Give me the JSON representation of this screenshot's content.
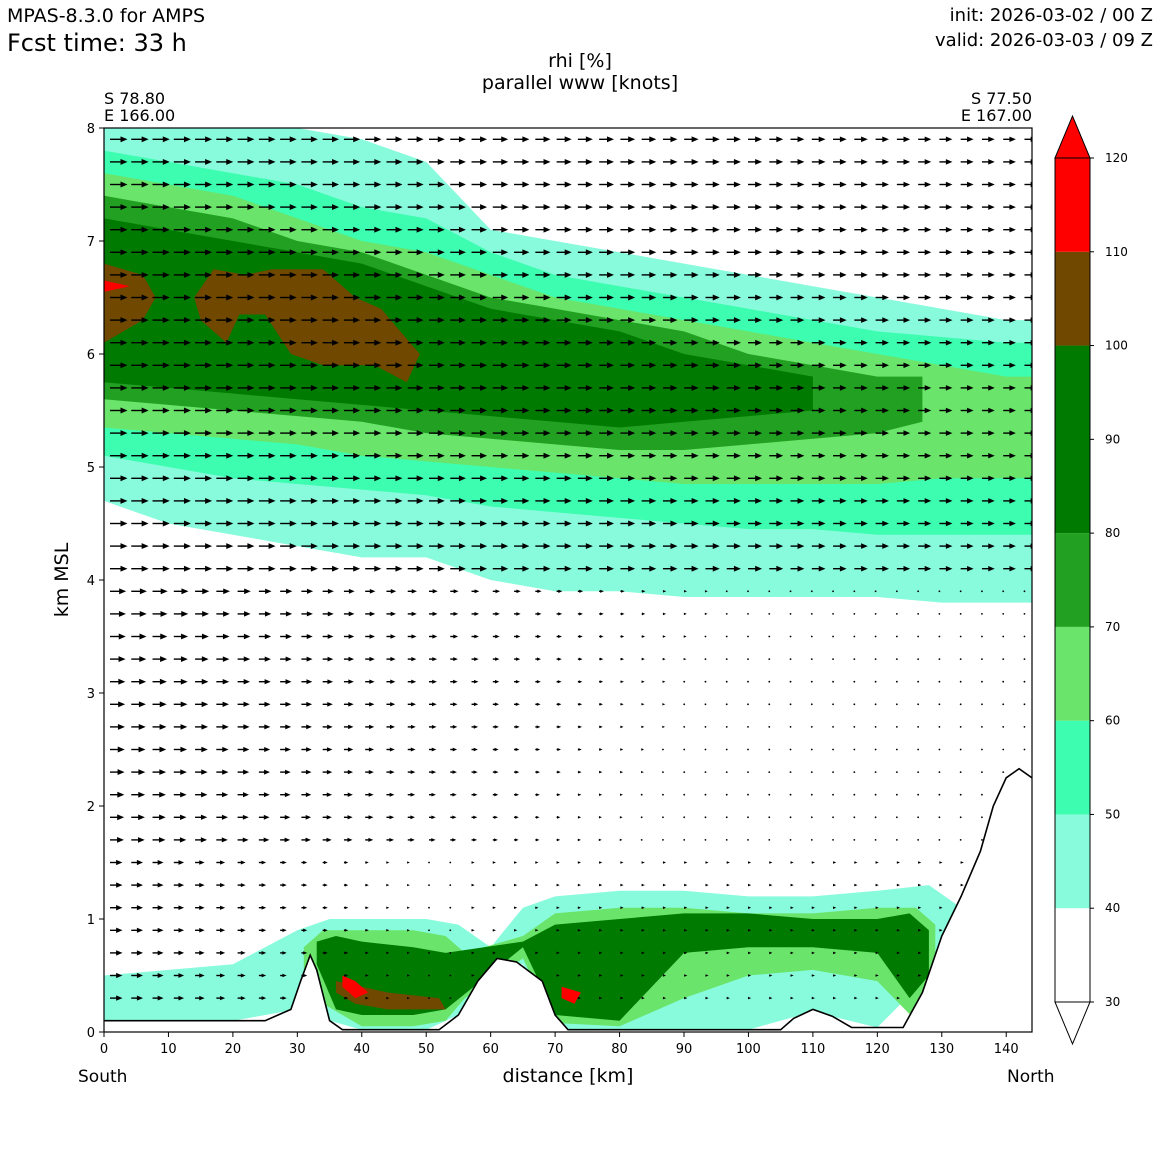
{
  "header": {
    "model": "MPAS-8.3.0 for AMPS",
    "fcst_time": "Fcst time:   33 h",
    "init": "init: 2026-03-02 / 00 Z",
    "valid": "valid: 2026-03-03 / 09 Z"
  },
  "chart_data": {
    "type": "heatmap",
    "title": "rhi [%]",
    "subtitle": "parallel www [knots]",
    "xlabel": "distance [km]",
    "ylabel": "km MSL",
    "xlim": [
      0,
      144
    ],
    "ylim": [
      0,
      8
    ],
    "x_ticks": [
      "0",
      "10",
      "20",
      "30",
      "40",
      "50",
      "60",
      "70",
      "80",
      "90",
      "100",
      "110",
      "120",
      "130",
      "140"
    ],
    "y_ticks": [
      "0",
      "1",
      "2",
      "3",
      "4",
      "5",
      "6",
      "7",
      "8"
    ],
    "start_point": {
      "lat": "S 78.80",
      "lon": "E 166.00"
    },
    "end_point": {
      "lat": "S 77.50",
      "lon": "E 167.00"
    },
    "left_end_label": "South",
    "right_end_label": "North",
    "colorbar": {
      "levels": [
        "30",
        "40",
        "50",
        "60",
        "70",
        "80",
        "90",
        "100",
        "110",
        "120"
      ],
      "bins": [
        {
          "from": 30,
          "to": 40,
          "color": "#ffffff"
        },
        {
          "from": 40,
          "to": 50,
          "color": "#88fbdc"
        },
        {
          "from": 50,
          "to": 60,
          "color": "#3dfdb0"
        },
        {
          "from": 60,
          "to": 70,
          "color": "#6ae46a"
        },
        {
          "from": 70,
          "to": 80,
          "color": "#21a021"
        },
        {
          "from": 80,
          "to": 100,
          "color": "#007a00"
        },
        {
          "from": 100,
          "to": 110,
          "color": "#704800"
        },
        {
          "from": 110,
          "to": 120,
          "color": "#ff0000"
        }
      ]
    },
    "terrain": [
      [
        0,
        0.1
      ],
      [
        25,
        0.1
      ],
      [
        29,
        0.2
      ],
      [
        30.5,
        0.45
      ],
      [
        32,
        0.68
      ],
      [
        33,
        0.55
      ],
      [
        35,
        0.1
      ],
      [
        37,
        0.02
      ],
      [
        52,
        0.02
      ],
      [
        55,
        0.15
      ],
      [
        58,
        0.45
      ],
      [
        61,
        0.65
      ],
      [
        64,
        0.62
      ],
      [
        68,
        0.45
      ],
      [
        70,
        0.15
      ],
      [
        72,
        0.02
      ],
      [
        105,
        0.02
      ],
      [
        107,
        0.12
      ],
      [
        110,
        0.2
      ],
      [
        113,
        0.14
      ],
      [
        116,
        0.04
      ],
      [
        124,
        0.04
      ],
      [
        127,
        0.35
      ],
      [
        130,
        0.85
      ],
      [
        133,
        1.2
      ],
      [
        136,
        1.6
      ],
      [
        138,
        2.0
      ],
      [
        140,
        2.25
      ],
      [
        142,
        2.33
      ],
      [
        144,
        2.25
      ]
    ],
    "rh_layers": [
      {
        "rh_bin": "40-50",
        "x": [
          0,
          10,
          20,
          30,
          40,
          50,
          60,
          70,
          80,
          90,
          100,
          110,
          120,
          130,
          140,
          144
        ],
        "top": [
          8,
          8,
          8,
          8,
          7.9,
          7.7,
          7.1,
          7.0,
          6.9,
          6.8,
          6.7,
          6.6,
          6.5,
          6.4,
          6.3,
          6.3
        ],
        "bottom": [
          4.7,
          4.5,
          4.4,
          4.3,
          4.2,
          4.2,
          4.0,
          3.9,
          3.9,
          3.85,
          3.85,
          3.85,
          3.85,
          3.8,
          3.8,
          3.8
        ]
      },
      {
        "rh_bin": "50-60",
        "x": [
          0,
          10,
          20,
          30,
          40,
          50,
          60,
          70,
          80,
          90,
          100,
          110,
          120,
          130,
          140,
          144
        ],
        "top": [
          7.8,
          7.7,
          7.6,
          7.5,
          7.3,
          7.2,
          6.9,
          6.7,
          6.6,
          6.5,
          6.4,
          6.3,
          6.2,
          6.15,
          6.1,
          6.1
        ],
        "bottom": [
          5.1,
          5.0,
          4.9,
          4.85,
          4.8,
          4.75,
          4.65,
          4.6,
          4.55,
          4.5,
          4.45,
          4.45,
          4.4,
          4.4,
          4.4,
          4.4
        ]
      },
      {
        "rh_bin": "60-70",
        "x": [
          0,
          10,
          20,
          30,
          40,
          50,
          60,
          70,
          80,
          90,
          100,
          110,
          120,
          130,
          140,
          144
        ],
        "top": [
          7.6,
          7.5,
          7.4,
          7.2,
          7.0,
          6.9,
          6.7,
          6.5,
          6.4,
          6.3,
          6.2,
          6.1,
          6.0,
          5.9,
          5.8,
          5.8
        ],
        "bottom": [
          5.35,
          5.3,
          5.25,
          5.2,
          5.1,
          5.05,
          5.0,
          4.95,
          4.9,
          4.85,
          4.85,
          4.85,
          4.85,
          4.9,
          4.9,
          4.9
        ]
      },
      {
        "rh_bin": "70-80",
        "x": [
          0,
          10,
          20,
          30,
          40,
          50,
          60,
          70,
          80,
          90,
          100,
          110,
          120,
          127
        ],
        "top": [
          7.4,
          7.3,
          7.2,
          7.0,
          6.9,
          6.7,
          6.5,
          6.4,
          6.3,
          6.2,
          6.0,
          5.9,
          5.8,
          5.8
        ],
        "bottom": [
          5.6,
          5.55,
          5.5,
          5.45,
          5.4,
          5.3,
          5.25,
          5.2,
          5.15,
          5.15,
          5.2,
          5.25,
          5.3,
          5.4
        ]
      },
      {
        "rh_bin": "80-100",
        "x": [
          0,
          10,
          20,
          30,
          40,
          50,
          60,
          70,
          80,
          90,
          100,
          110
        ],
        "top": [
          7.2,
          7.1,
          7.0,
          6.9,
          6.8,
          6.6,
          6.4,
          6.3,
          6.2,
          6.0,
          5.9,
          5.8
        ],
        "bottom": [
          5.75,
          5.7,
          5.65,
          5.6,
          5.55,
          5.5,
          5.45,
          5.4,
          5.35,
          5.4,
          5.45,
          5.5
        ]
      }
    ],
    "rh_blobs": [
      {
        "rh_bin": "100-110",
        "outline": [
          [
            0,
            6.8
          ],
          [
            6,
            6.7
          ],
          [
            8,
            6.5
          ],
          [
            6,
            6.3
          ],
          [
            0,
            6.1
          ]
        ]
      },
      {
        "rh_bin": "100-110",
        "outline": [
          [
            14,
            6.5
          ],
          [
            17,
            6.75
          ],
          [
            22,
            6.7
          ],
          [
            26,
            6.75
          ],
          [
            34,
            6.75
          ],
          [
            39,
            6.5
          ],
          [
            43,
            6.4
          ],
          [
            46,
            6.2
          ],
          [
            49,
            6.0
          ],
          [
            47,
            5.75
          ],
          [
            42,
            5.9
          ],
          [
            34,
            5.9
          ],
          [
            29,
            6.0
          ],
          [
            25,
            6.35
          ],
          [
            21,
            6.35
          ],
          [
            19,
            6.1
          ],
          [
            15,
            6.3
          ]
        ]
      },
      {
        "rh_bin": "110-120",
        "outline": [
          [
            0,
            6.65
          ],
          [
            4,
            6.6
          ],
          [
            0,
            6.55
          ]
        ]
      }
    ],
    "low_cloud": [
      {
        "rh_bin": "40-50",
        "x": [
          0,
          10,
          20,
          30,
          35,
          40,
          50,
          55,
          60,
          65,
          70,
          80,
          90,
          100,
          110,
          120,
          128,
          133
        ],
        "top": [
          0.5,
          0.55,
          0.6,
          0.9,
          1.0,
          1.0,
          1.0,
          0.95,
          0.75,
          1.1,
          1.2,
          1.25,
          1.25,
          1.2,
          1.2,
          1.25,
          1.3,
          1.1
        ],
        "bottom": [
          0.1,
          0.1,
          0.1,
          0.2,
          0.1,
          0.02,
          0.02,
          0.15,
          0.6,
          0.6,
          0.02,
          0.02,
          0.02,
          0.02,
          0.18,
          0.04,
          0.5,
          1.0
        ]
      },
      {
        "rh_bin": "60-70",
        "x": [
          31,
          34,
          40,
          48,
          53,
          56,
          65,
          70,
          80,
          90,
          100,
          110,
          120,
          126,
          129
        ],
        "top": [
          0.75,
          0.9,
          0.9,
          0.9,
          0.85,
          0.7,
          0.85,
          1.05,
          1.1,
          1.1,
          1.05,
          1.05,
          1.1,
          1.1,
          0.95
        ],
        "bottom": [
          0.55,
          0.25,
          0.05,
          0.05,
          0.1,
          0.3,
          0.65,
          0.08,
          0.05,
          0.3,
          0.5,
          0.55,
          0.45,
          0.1,
          0.4
        ]
      },
      {
        "rh_bin": "80-100",
        "x": [
          33,
          36,
          40,
          48,
          53,
          65,
          70,
          80,
          90,
          100,
          110,
          120,
          125,
          128
        ],
        "top": [
          0.8,
          0.85,
          0.8,
          0.75,
          0.7,
          0.8,
          0.95,
          1.0,
          1.05,
          1.05,
          1.0,
          1.0,
          1.05,
          0.9
        ],
        "bottom": [
          0.6,
          0.2,
          0.15,
          0.15,
          0.2,
          0.75,
          0.15,
          0.1,
          0.7,
          0.75,
          0.75,
          0.7,
          0.3,
          0.5
        ]
      },
      {
        "rh_bin": "100-110",
        "outline": [
          [
            36,
            0.45
          ],
          [
            40,
            0.4
          ],
          [
            44,
            0.35
          ],
          [
            52,
            0.3
          ],
          [
            53,
            0.2
          ],
          [
            44,
            0.2
          ],
          [
            39,
            0.25
          ],
          [
            36,
            0.35
          ]
        ]
      },
      {
        "rh_bin": "110-120",
        "outline": [
          [
            37,
            0.5
          ],
          [
            39,
            0.45
          ],
          [
            41,
            0.35
          ],
          [
            39,
            0.3
          ],
          [
            37,
            0.4
          ]
        ]
      },
      {
        "rh_bin": "110-120",
        "outline": [
          [
            71,
            0.4
          ],
          [
            74,
            0.35
          ],
          [
            73,
            0.25
          ],
          [
            71,
            0.3
          ]
        ]
      }
    ],
    "wind_vectors_note": "parallel wind ~ strong northward (10-20 kt) above 4 km and in lowest 1.5 km south of 55 km; weak near terrain north of 90 km"
  }
}
